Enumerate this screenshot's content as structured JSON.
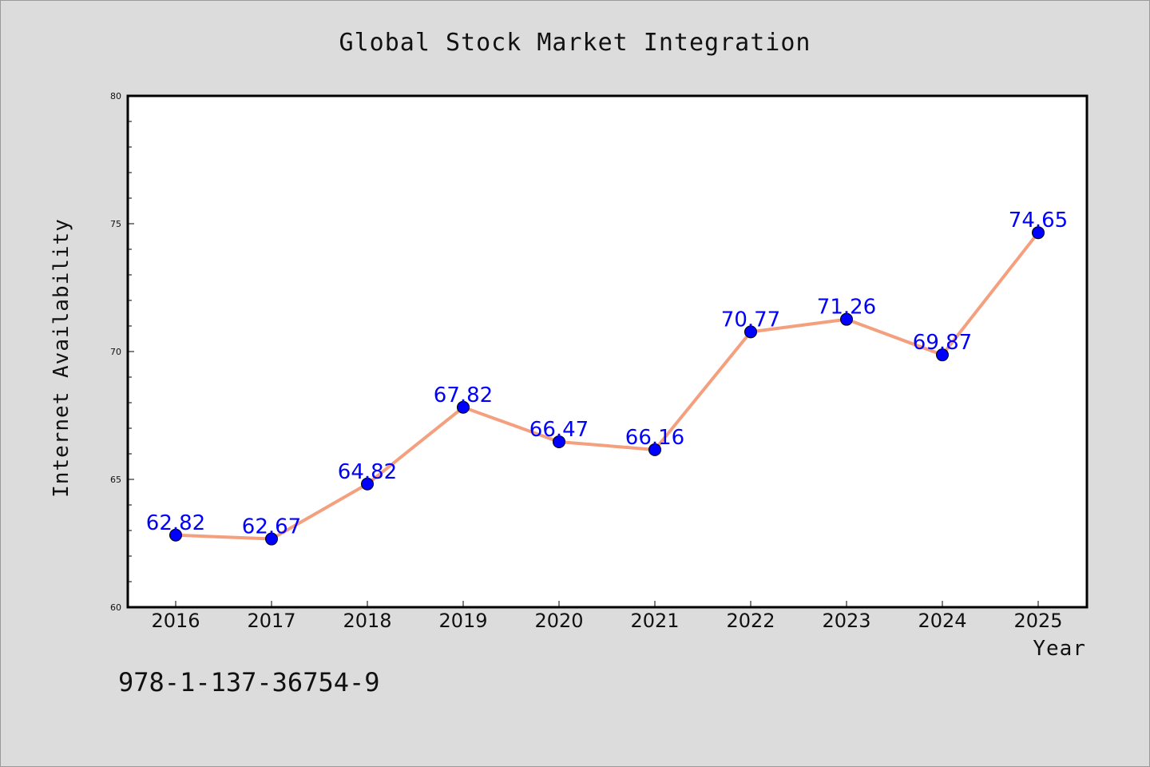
{
  "chart_data": {
    "type": "line",
    "title": "Global Stock Market Integration",
    "xlabel": "Year",
    "ylabel": "Internet Availability",
    "categories": [
      "2016",
      "2017",
      "2018",
      "2019",
      "2020",
      "2021",
      "2022",
      "2023",
      "2024",
      "2025"
    ],
    "series": [
      {
        "values": [
          62.82,
          62.67,
          64.82,
          67.82,
          66.47,
          66.16,
          70.77,
          71.26,
          69.87,
          74.65
        ]
      }
    ],
    "data_labels": [
      "62.82",
      "62.67",
      "64.82",
      "67.82",
      "66.47",
      "66.16",
      "70.77",
      "71.26",
      "69.87",
      "74.65"
    ],
    "ylim": [
      60,
      80
    ],
    "yticks": [
      "60",
      "65",
      "70",
      "75",
      "80"
    ],
    "grid": false,
    "colors": {
      "line": "#f4a07f",
      "marker": "#0000ff",
      "label": "#0000ff",
      "background": "#dcdcdc",
      "plot_background": "#ffffff"
    }
  },
  "annotation": {
    "isbn": "978-1-137-36754-9"
  }
}
